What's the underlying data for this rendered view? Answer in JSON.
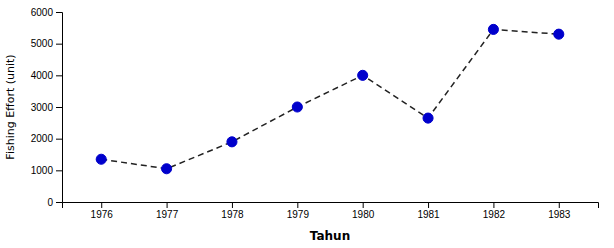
{
  "chart_data": {
    "type": "line",
    "x": [
      1976,
      1977,
      1978,
      1979,
      1980,
      1981,
      1982,
      1983
    ],
    "values": [
      1350,
      1050,
      1900,
      3000,
      4000,
      2650,
      5450,
      5300
    ],
    "xlabel": "Tahun",
    "ylabel": "Fishing Effort (unit)",
    "xlim": [
      1975.4,
      1983.6
    ],
    "xticks": [
      1976,
      1977,
      1978,
      1979,
      1980,
      1981,
      1982,
      1983
    ],
    "ylim": [
      0,
      6000
    ],
    "yticks": [
      0,
      1000,
      2000,
      3000,
      4000,
      5000,
      6000
    ],
    "color": "#0000CC",
    "marker": "circle",
    "line_style": "dashed",
    "grid": false
  }
}
